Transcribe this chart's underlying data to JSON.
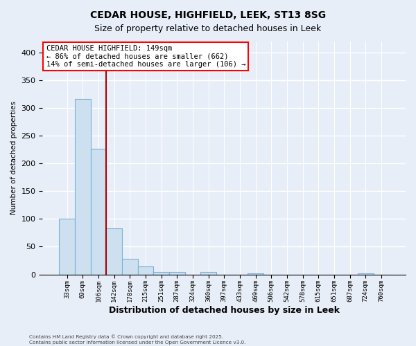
{
  "title": "CEDAR HOUSE, HIGHFIELD, LEEK, ST13 8SG",
  "subtitle": "Size of property relative to detached houses in Leek",
  "xlabel": "Distribution of detached houses by size in Leek",
  "ylabel": "Number of detached properties",
  "bar_labels": [
    "33sqm",
    "69sqm",
    "106sqm",
    "142sqm",
    "178sqm",
    "215sqm",
    "251sqm",
    "287sqm",
    "324sqm",
    "360sqm",
    "397sqm",
    "433sqm",
    "469sqm",
    "506sqm",
    "542sqm",
    "578sqm",
    "615sqm",
    "651sqm",
    "687sqm",
    "724sqm",
    "760sqm"
  ],
  "bar_values": [
    101,
    317,
    226,
    83,
    28,
    14,
    5,
    4,
    0,
    5,
    0,
    0,
    2,
    0,
    0,
    0,
    0,
    0,
    0,
    2,
    0
  ],
  "bar_color": "#cce0f0",
  "bar_edge_color": "#7ab0d4",
  "vline_color": "#aa0000",
  "ylim": [
    0,
    420
  ],
  "yticks": [
    0,
    50,
    100,
    150,
    200,
    250,
    300,
    350,
    400
  ],
  "annotation_title": "CEDAR HOUSE HIGHFIELD: 149sqm",
  "annotation_line1": "← 86% of detached houses are smaller (662)",
  "annotation_line2": "14% of semi-detached houses are larger (106) →",
  "footer_line1": "Contains HM Land Registry data © Crown copyright and database right 2025.",
  "footer_line2": "Contains public sector information licensed under the Open Government Licence v3.0.",
  "bg_color": "#e8eef8",
  "plot_bg_color": "#e8eef8"
}
